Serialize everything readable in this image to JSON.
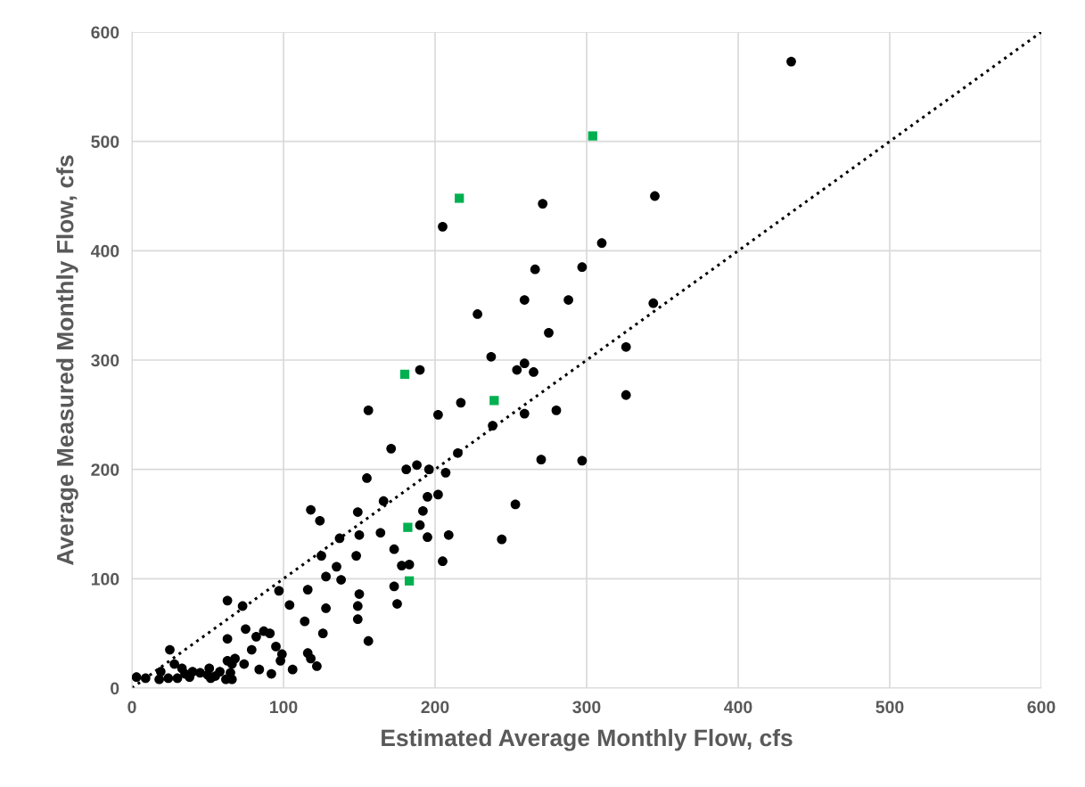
{
  "chart_data": {
    "type": "scatter",
    "xlabel": "Estimated Average Monthly Flow, cfs",
    "ylabel": "Average Measured Monthly Flow, cfs",
    "xlim": [
      0,
      600
    ],
    "ylim": [
      0,
      600
    ],
    "xticks": [
      0,
      100,
      200,
      300,
      400,
      500,
      600
    ],
    "yticks": [
      0,
      100,
      200,
      300,
      400,
      500,
      600
    ],
    "grid": true,
    "series": [
      {
        "color": "#000000",
        "marker": "circle",
        "x": [
          435,
          345,
          271,
          205,
          310,
          297,
          266,
          259,
          288,
          344,
          228,
          275,
          326,
          237,
          259,
          254,
          265,
          190,
          326,
          217,
          156,
          280,
          259,
          202,
          238,
          171,
          215,
          270,
          297,
          188,
          181,
          196,
          207,
          155,
          202,
          195,
          166,
          253,
          118,
          192,
          149,
          124,
          190,
          150,
          209,
          137,
          195,
          244,
          164,
          173,
          125,
          148,
          205,
          135,
          178,
          183,
          128,
          138,
          173,
          116,
          97,
          150,
          104,
          63,
          73,
          175,
          149,
          128,
          114,
          149,
          75,
          87,
          126,
          91,
          82,
          63,
          156,
          95,
          79,
          25,
          116,
          99,
          118,
          68,
          98,
          63,
          28,
          74,
          66,
          122,
          33,
          106,
          84,
          51,
          19,
          58,
          40,
          45,
          65,
          92,
          35,
          50,
          55,
          38,
          3,
          9,
          30,
          24,
          52,
          62,
          66,
          18
        ],
        "values": [
          573,
          450,
          443,
          422,
          407,
          385,
          383,
          355,
          355,
          352,
          342,
          325,
          312,
          303,
          297,
          291,
          289,
          291,
          268,
          261,
          254,
          254,
          251,
          250,
          240,
          219,
          215,
          209,
          208,
          204,
          200,
          200,
          197,
          192,
          177,
          175,
          171,
          168,
          163,
          162,
          161,
          153,
          149,
          140,
          140,
          137,
          138,
          136,
          142,
          127,
          121,
          121,
          116,
          111,
          112,
          113,
          102,
          99,
          93,
          90,
          89,
          86,
          76,
          80,
          75,
          77,
          75,
          73,
          61,
          63,
          54,
          52,
          50,
          50,
          47,
          45,
          43,
          38,
          35,
          35,
          32,
          31,
          27,
          27,
          25,
          25,
          22,
          22,
          22,
          20,
          18,
          17,
          17,
          18,
          15,
          15,
          15,
          14,
          14,
          13,
          13,
          12,
          11,
          10,
          10,
          9,
          9,
          9,
          9,
          8,
          8,
          8
        ]
      },
      {
        "color": "#00b050",
        "marker": "square",
        "x": [
          304,
          216,
          180,
          239,
          182,
          183
        ],
        "values": [
          505,
          448,
          287,
          263,
          147,
          98
        ]
      },
      {
        "type": "line",
        "color": "#000000",
        "marker": "none",
        "line_style": "dotted",
        "x": [
          0,
          600
        ],
        "values": [
          0,
          600
        ]
      }
    ]
  }
}
